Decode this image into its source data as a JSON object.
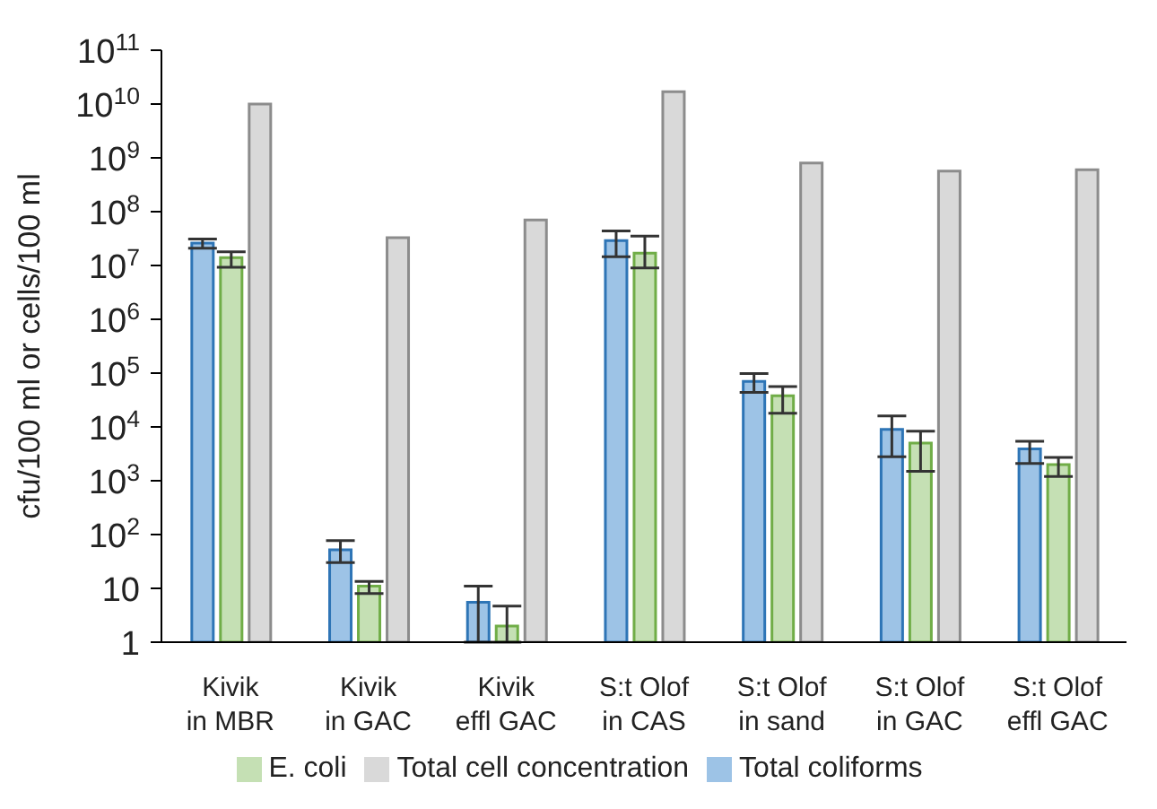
{
  "chart_data": {
    "type": "bar",
    "ylabel": "cfu/100 ml or cells/100 ml",
    "categories": [
      "Kivik\nin MBR",
      "Kivik\nin GAC",
      "Kivik\neffl GAC",
      "S:t Olof\nin CAS",
      "S:t Olof\nin sand",
      "S:t Olof\nin GAC",
      "S:t Olof\neffl GAC"
    ],
    "series": [
      {
        "name": "Total coliforms",
        "color": "#9dc3e6",
        "values": [
          26000000,
          52,
          5.5,
          29000000,
          70000,
          9000,
          3900
        ],
        "errors": [
          [
            21000000,
            31000000
          ],
          [
            30,
            77
          ],
          [
            1,
            11
          ],
          [
            14500000,
            44000000
          ],
          [
            44000,
            98000
          ],
          [
            2800,
            16000
          ],
          [
            2100,
            5400
          ]
        ]
      },
      {
        "name": "E. coli",
        "color": "#c5e0b4",
        "values": [
          14000000,
          11,
          2,
          17000000,
          38000,
          5000,
          2000
        ],
        "errors": [
          [
            9300000,
            18000000
          ],
          [
            8,
            13.5
          ],
          [
            1,
            4.7
          ],
          [
            9000000,
            35000000
          ],
          [
            18000,
            56000
          ],
          [
            1500,
            8300
          ],
          [
            1200,
            2700
          ]
        ]
      },
      {
        "name": "Total cell concentration",
        "color": "#d9d9d9",
        "values": [
          10000000000,
          33000000,
          70000000,
          17000000000,
          800000000,
          570000000,
          600000000
        ]
      }
    ],
    "log": true,
    "ylim": [
      1,
      100000000000
    ],
    "yticks": [
      1,
      10,
      {
        "value": 100,
        "label": "10$^{2}$"
      },
      {
        "value": 1000,
        "label": "10$^{3}$"
      },
      {
        "value": 10000,
        "label": "10$^{4}$"
      },
      {
        "value": 100000,
        "label": "10$^{5}$"
      },
      {
        "value": 1000000,
        "label": "10$^{6}$"
      },
      {
        "value": 10000000,
        "label": "10$^{7}$"
      },
      {
        "value": 100000000,
        "label": "10$^{8}$"
      },
      {
        "value": 1000000000,
        "label": "10$^{9}$"
      },
      {
        "value": 10000000000,
        "label": "10$^{10}$"
      },
      {
        "value": 100000000000,
        "label": "10$^{11}$"
      }
    ],
    "grid": false,
    "legend": "bottom"
  }
}
